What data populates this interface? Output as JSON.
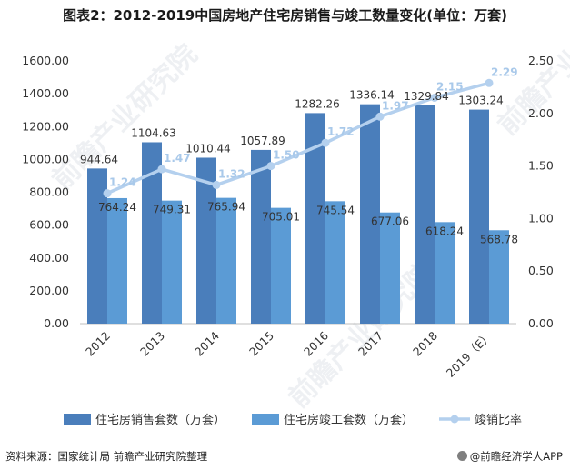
{
  "title": "图表2：2012-2019中国房地产住宅房销售与竣工数量变化(单位：万套)",
  "source": "资料来源：国家统计局 前瞻产业研究院整理",
  "brand": "@前瞻经济学人APP",
  "watermark": "前瞻产业研究院",
  "colors": {
    "sales": "#4a7ebb",
    "completed": "#5b9bd5",
    "ratio": "#b4d0ee",
    "ratio_label": "#a9c9ea"
  },
  "chart_data": {
    "type": "bar",
    "categories": [
      "2012",
      "2013",
      "2014",
      "2015",
      "2016",
      "2017",
      "2018",
      "2019（E）"
    ],
    "series": [
      {
        "name": "住宅房销售套数（万套）",
        "type": "bar",
        "axis": "left",
        "values": [
          944.64,
          1104.63,
          1010.44,
          1057.89,
          1282.26,
          1336.14,
          1329.84,
          1303.24
        ]
      },
      {
        "name": "住宅房竣工套数（万套）",
        "type": "bar",
        "axis": "left",
        "values": [
          764.24,
          749.31,
          765.94,
          705.01,
          745.54,
          677.06,
          618.24,
          568.78
        ]
      },
      {
        "name": "竣销比率",
        "type": "line",
        "axis": "right",
        "values": [
          1.24,
          1.47,
          1.32,
          1.5,
          1.72,
          1.97,
          2.15,
          2.29
        ]
      }
    ],
    "y_left": {
      "range": [
        0,
        1600
      ],
      "ticks": [
        "0.00",
        "200.00",
        "400.00",
        "600.00",
        "800.00",
        "1000.00",
        "1200.00",
        "1400.00",
        "1600.00"
      ]
    },
    "y_right": {
      "range": [
        0,
        2.5
      ],
      "ticks": [
        "0.00",
        "0.50",
        "1.00",
        "1.50",
        "2.00",
        "2.50"
      ]
    },
    "bar_labels_sales": [
      "944.64",
      "1104.63",
      "1010.44",
      "1057.89",
      "1282.26",
      "1336.14",
      "1329.84",
      "1303.24"
    ],
    "bar_labels_completed": [
      "764.24",
      "749.31",
      "765.94",
      "705.01",
      "745.54",
      "677.06",
      "618.24",
      "568.78"
    ],
    "ratio_labels": [
      "1.24",
      "1.47",
      "1.32",
      "1.50",
      "1.72",
      "1.97",
      "2.15",
      "2.29"
    ],
    "legend_position": "bottom",
    "grid": false
  }
}
